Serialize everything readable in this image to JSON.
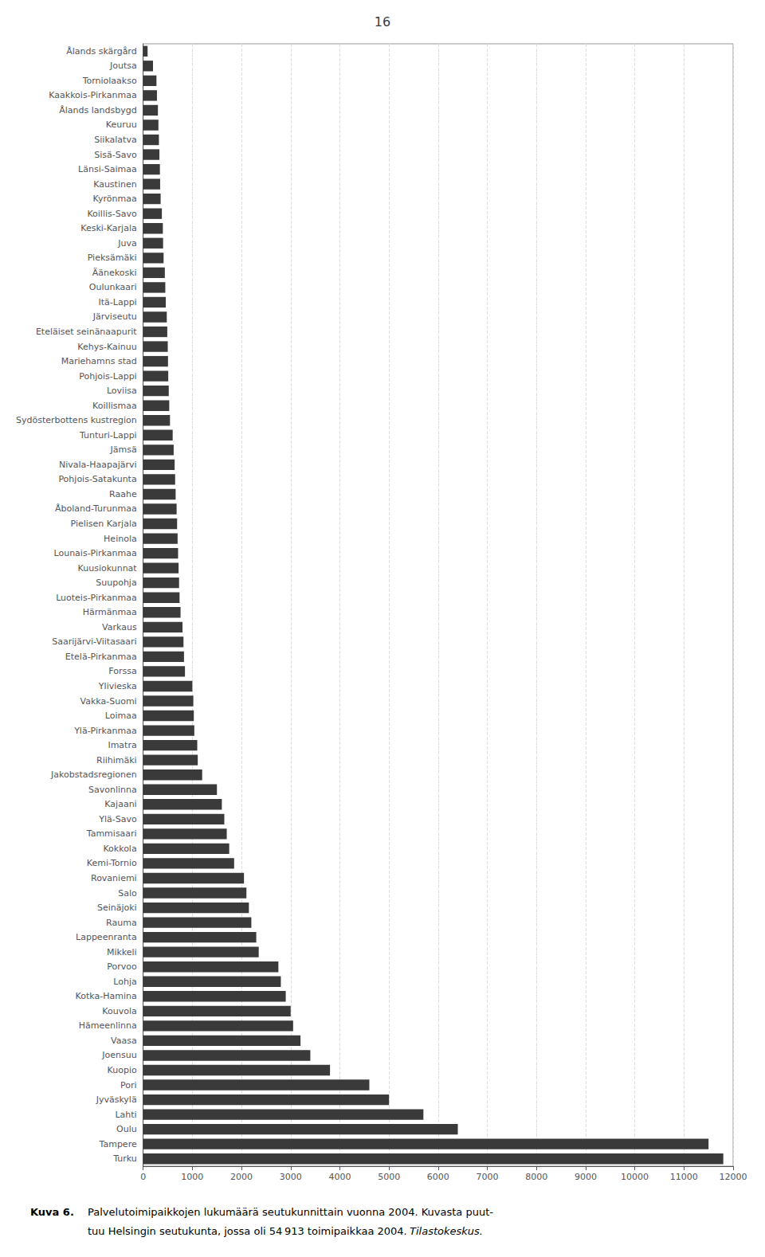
{
  "chart_data": {
    "type": "bar",
    "orientation": "horizontal",
    "title": "16",
    "color": "#3a3a3a",
    "grid": true,
    "xlim": [
      0,
      12000
    ],
    "xticks": [
      0,
      1000,
      2000,
      3000,
      4000,
      5000,
      6000,
      7000,
      8000,
      9000,
      10000,
      11000,
      12000
    ],
    "categories": [
      "Turku",
      "Tampere",
      "Oulu",
      "Lahti",
      "Jyväskylä",
      "Pori",
      "Kuopio",
      "Joensuu",
      "Vaasa",
      "Hämeenlinna",
      "Kouvola",
      "Kotka-Hamina",
      "Lohja",
      "Porvoo",
      "Mikkeli",
      "Lappeenranta",
      "Rauma",
      "Seinäjoki",
      "Salo",
      "Rovaniemi",
      "Kemi-Tornio",
      "Kokkola",
      "Tammisaari",
      "Ylä-Savo",
      "Kajaani",
      "Savonlinna",
      "Jakobstadsregionen",
      "Riihimäki",
      "Imatra",
      "Ylä-Pirkanmaa",
      "Loimaa",
      "Vakka-Suomi",
      "Ylivieska",
      "Forssa",
      "Etelä-Pirkanmaa",
      "Saarijärvi-Viitasaari",
      "Varkaus",
      "Härmänmaa",
      "Luoteis-Pirkanmaa",
      "Suupohja",
      "Kuusiokunnat",
      "Lounais-Pirkanmaa",
      "Heinola",
      "Pielisen Karjala",
      "Åboland-Turunmaa",
      "Raahe",
      "Pohjois-Satakunta",
      "Nivala-Haapajärvi",
      "Jämsä",
      "Tunturi-Lappi",
      "Sydösterbottens kustregion",
      "Koillismaa",
      "Loviisa",
      "Pohjois-Lappi",
      "Mariehamns stad",
      "Kehys-Kainuu",
      "Eteläiset seinänaapurit",
      "Järviseutu",
      "Itä-Lappi",
      "Oulunkaari",
      "Äänekoski",
      "Pieksämäki",
      "Juva",
      "Keski-Karjala",
      "Koillis-Savo",
      "Kyrönmaa",
      "Kaustinen",
      "Länsi-Saimaa",
      "Sisä-Savo",
      "Siikalatva",
      "Keuruu",
      "Ålands landsbygd",
      "Kaakkois-Pirkanmaa",
      "Torniolaakso",
      "Joutsa",
      "Ålands skärgård"
    ],
    "values": [
      11800,
      11500,
      6400,
      5700,
      5000,
      4600,
      3800,
      3400,
      3200,
      3050,
      3000,
      2900,
      2800,
      2750,
      2350,
      2300,
      2200,
      2150,
      2100,
      2050,
      1850,
      1750,
      1700,
      1650,
      1600,
      1500,
      1200,
      1110,
      1100,
      1040,
      1030,
      1020,
      1000,
      850,
      830,
      820,
      800,
      760,
      740,
      730,
      720,
      710,
      700,
      690,
      680,
      660,
      650,
      640,
      620,
      600,
      545,
      530,
      520,
      510,
      505,
      500,
      490,
      480,
      460,
      450,
      440,
      415,
      405,
      400,
      380,
      355,
      345,
      340,
      330,
      320,
      310,
      300,
      280,
      270,
      200,
      90
    ],
    "caption_bold": "Kuva 6.",
    "caption_lines": [
      "Palvelutoimipaikkojen lukumäärä seutukunnittain vuonna 2004. Kuvasta puut-",
      "tuu Helsingin seutukunta, jossa oli 54 913 toimipaikkaa 2004."
    ],
    "caption_italic": "Tilastokeskus."
  }
}
